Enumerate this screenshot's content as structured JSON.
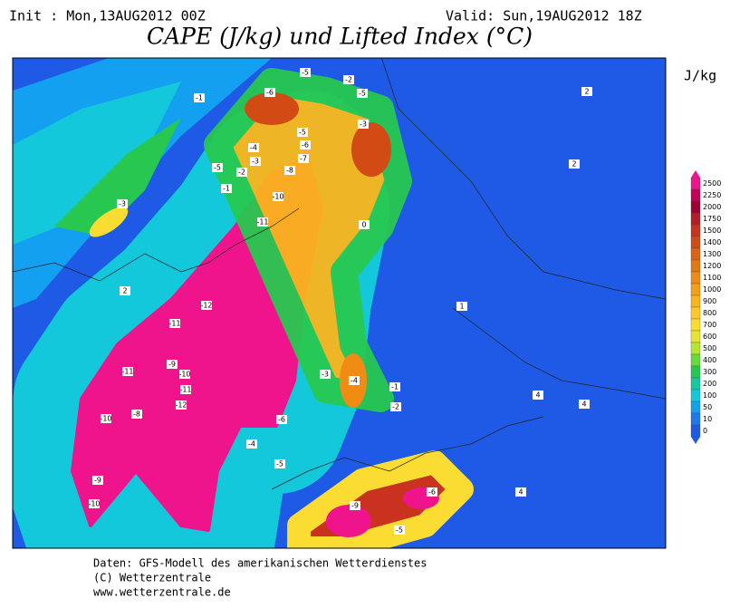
{
  "header": {
    "init": "Init : Mon,13AUG2012 00Z",
    "valid": "Valid: Sun,19AUG2012 18Z",
    "title": "CAPE (J/kg) und Lifted Index (°C)"
  },
  "colorbar": {
    "unit": "J/kg",
    "levels": [
      2500,
      2250,
      2000,
      1750,
      1500,
      1400,
      1300,
      1200,
      1100,
      1000,
      900,
      800,
      700,
      600,
      500,
      400,
      300,
      200,
      100,
      50,
      10,
      0
    ],
    "colors": [
      "#f0148c",
      "#c8005a",
      "#a00032",
      "#b41e28",
      "#c8321e",
      "#d24b14",
      "#dc6414",
      "#e67814",
      "#f08c14",
      "#f5a014",
      "#fab41e",
      "#ffc828",
      "#fadc32",
      "#e6e632",
      "#b4e632",
      "#64dc3c",
      "#28c850",
      "#14c8a0",
      "#14c8dc",
      "#14a0f0",
      "#1e78f0",
      "#1e5ae6"
    ]
  },
  "contour_labels": [
    -1,
    -5,
    -6,
    -5,
    -3,
    -2,
    -4,
    -5,
    -3,
    -2,
    -1,
    -6,
    -5,
    -3,
    -7,
    -8,
    -10,
    -11,
    -12,
    -11,
    -11,
    -9,
    -10,
    -11,
    -12,
    -10,
    -8,
    -9,
    -10,
    -6,
    -4,
    -5,
    -3,
    -4,
    -2,
    -1,
    0,
    1,
    2,
    2,
    2,
    4,
    4,
    4,
    -6,
    -9,
    -5
  ],
  "footer": [
    "Daten: GFS-Modell des amerikanischen Wetterdienstes",
    "(C) Wetterzentrale",
    "www.wetterzentrale.de"
  ]
}
